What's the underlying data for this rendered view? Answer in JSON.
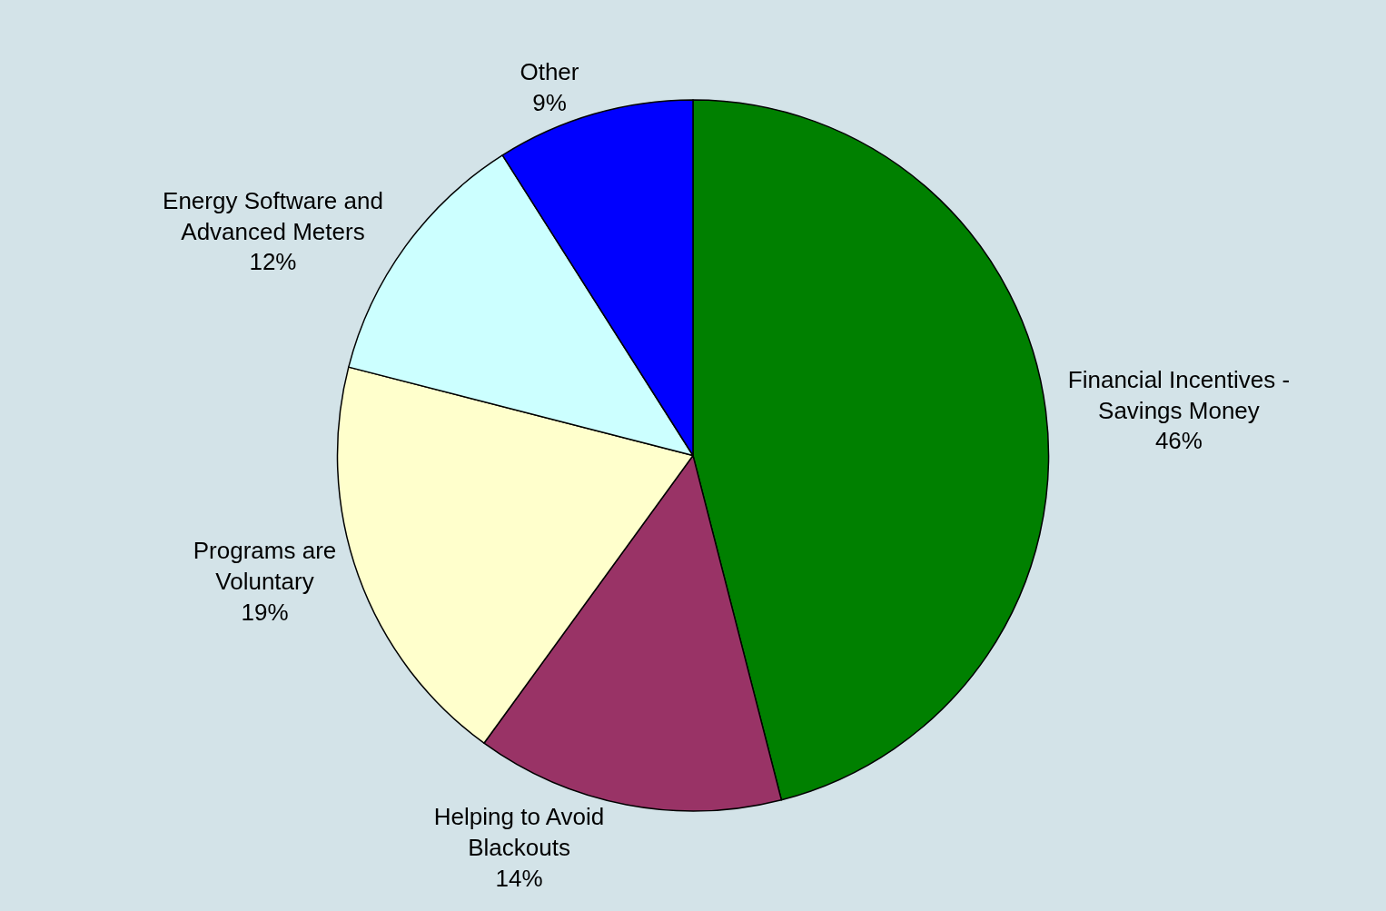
{
  "chart_data": {
    "type": "pie",
    "categories": [
      "Financial Incentives -\nSavings Money",
      "Helping to Avoid\nBlackouts",
      "Programs are\nVoluntary",
      "Energy Software and\nAdvanced Meters",
      "Other"
    ],
    "values": [
      46,
      14,
      19,
      12,
      9
    ],
    "colors": [
      "#008000",
      "#993366",
      "#ffffcc",
      "#ccffff",
      "#0000ff"
    ],
    "value_labels": [
      "46%",
      "14%",
      "19%",
      "12%",
      "9%"
    ],
    "legend": false
  }
}
